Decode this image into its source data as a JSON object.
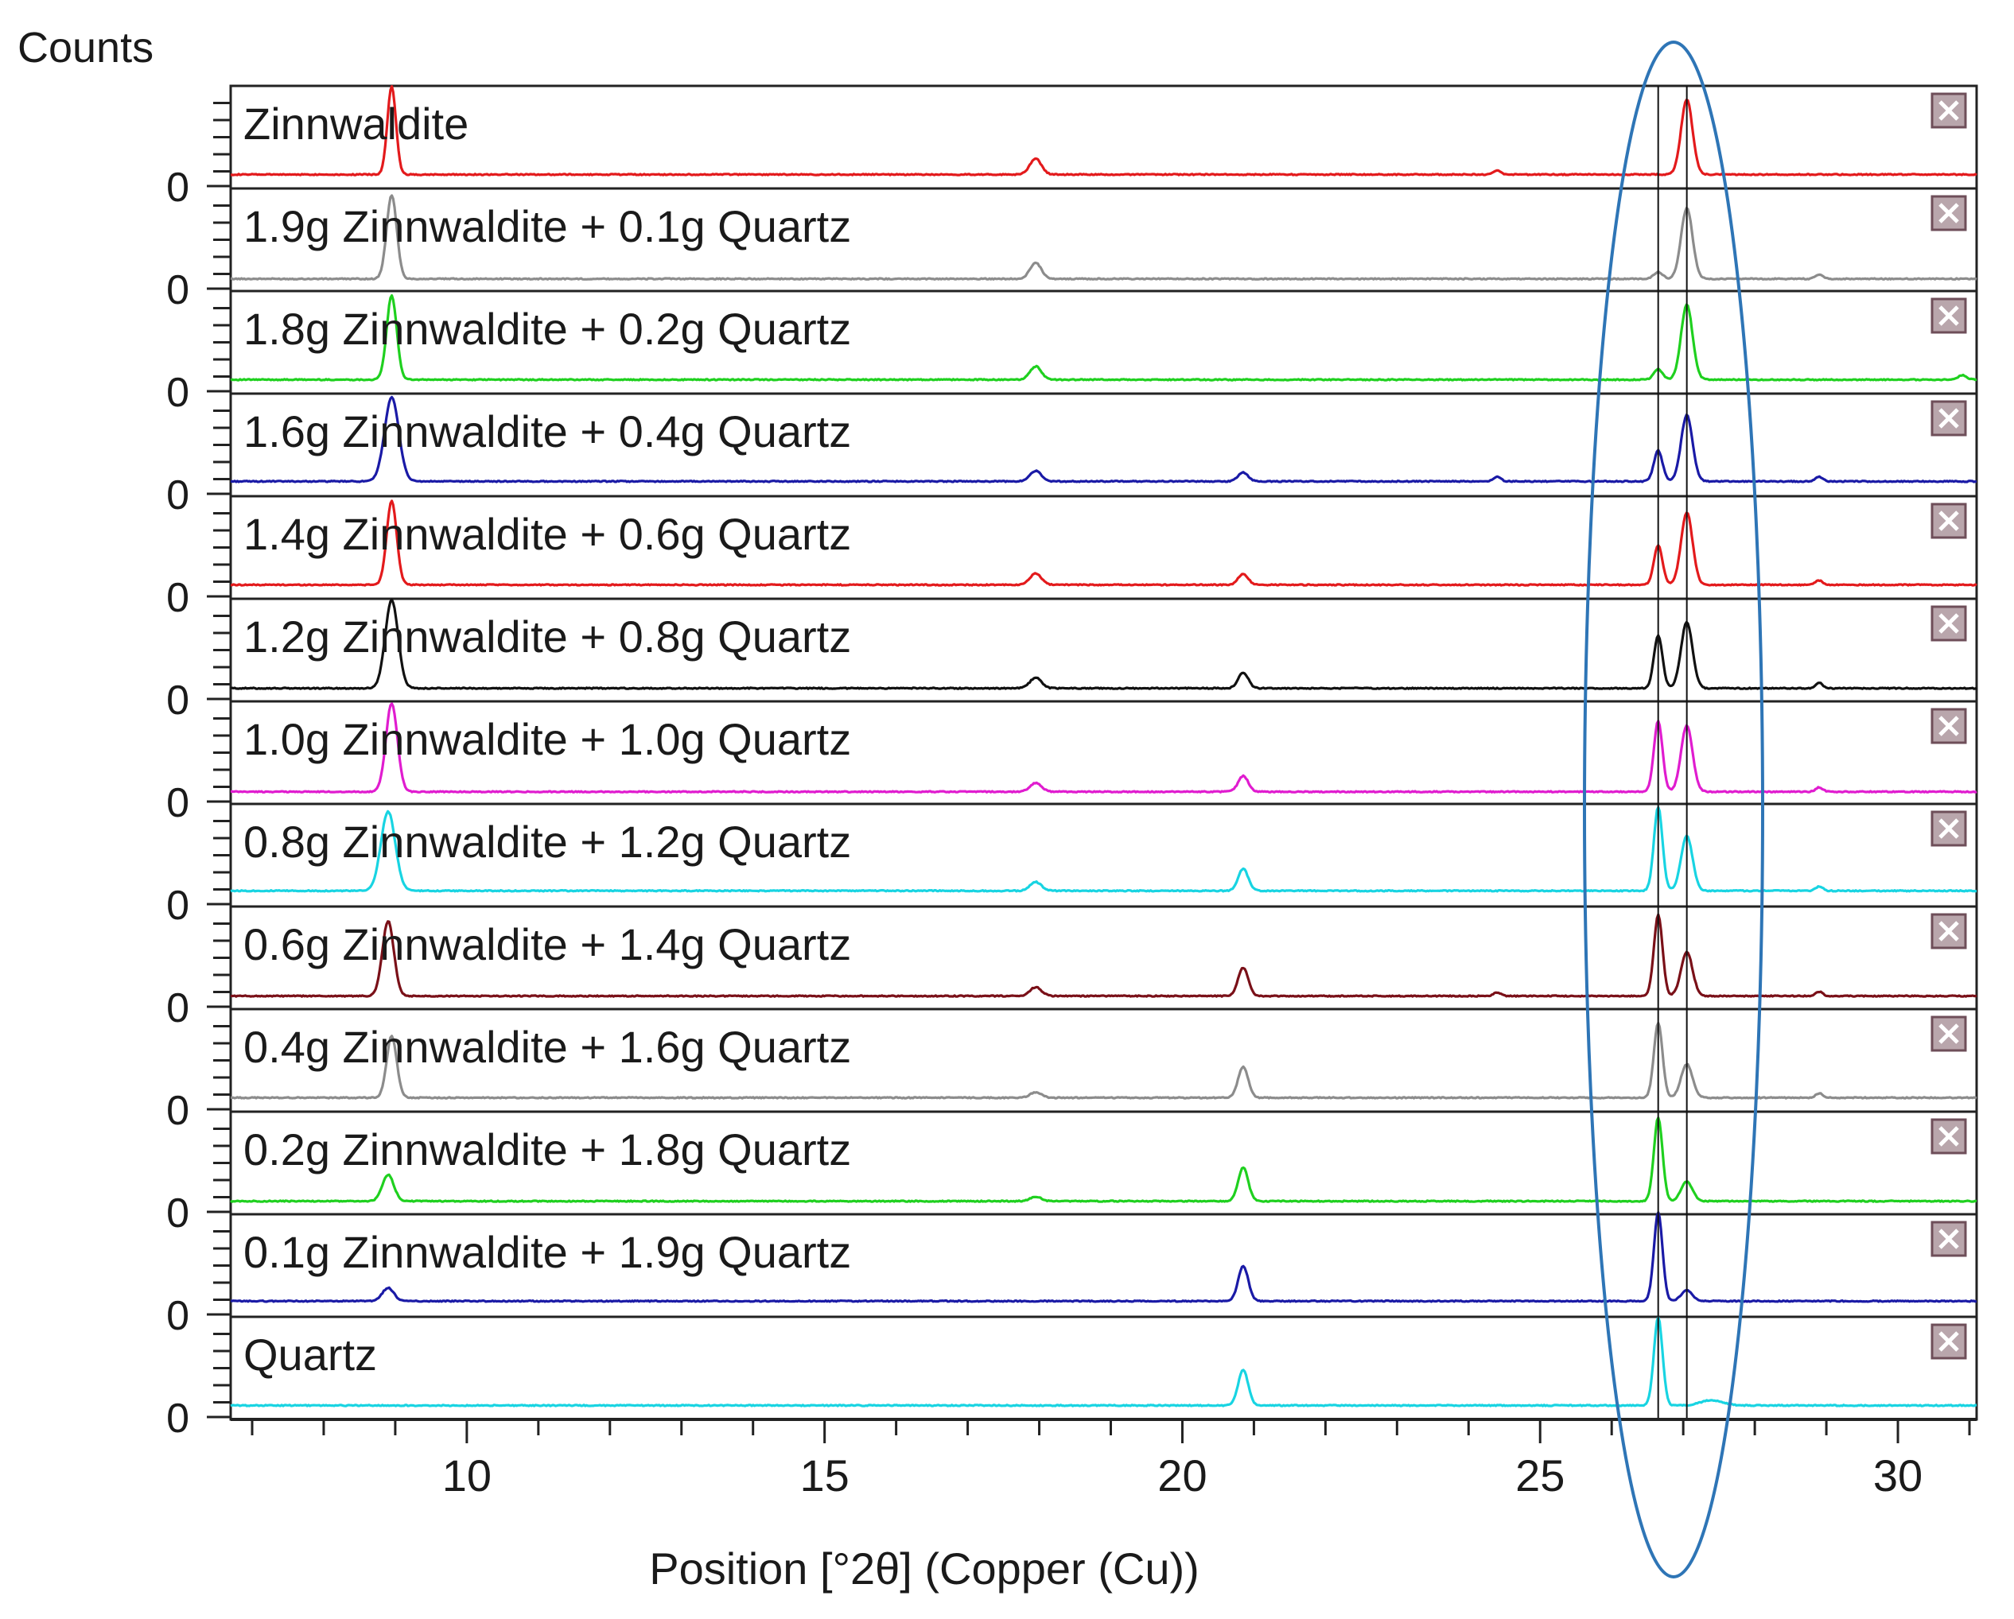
{
  "chart_data": {
    "type": "line",
    "title": "",
    "ylabel": "Counts",
    "xlabel": "Position [°2θ] (Copper (Cu))",
    "xlim": [
      6.7,
      31.1
    ],
    "x_ticks": [
      10,
      15,
      20,
      25,
      30
    ],
    "x_tick_labels": [
      "10",
      "15",
      "20",
      "25",
      "30"
    ],
    "y_tick_label": "0",
    "reference_lines_x": [
      26.65,
      27.05
    ],
    "highlight": {
      "shape": "ellipse",
      "x_center": 26.85,
      "note": "region of quartz (26.65) and zinnwaldite (27.05) peaks"
    },
    "close_icon": "close-box-icon",
    "series": [
      {
        "name": "Zinnwaldite",
        "color": "#e31a1c",
        "baseline": 0.08,
        "peaks": [
          [
            8.95,
            1.0,
            0.06
          ],
          [
            17.95,
            0.18,
            0.08
          ],
          [
            27.05,
            0.85,
            0.08
          ],
          [
            24.4,
            0.05,
            0.05
          ]
        ]
      },
      {
        "name": "1.9g Zinnwaldite + 0.1g Quartz",
        "color": "#8c8c8c",
        "baseline": 0.06,
        "peaks": [
          [
            8.95,
            0.95,
            0.07
          ],
          [
            17.95,
            0.18,
            0.08
          ],
          [
            26.65,
            0.08,
            0.06
          ],
          [
            27.05,
            0.8,
            0.08
          ],
          [
            28.9,
            0.05,
            0.05
          ]
        ]
      },
      {
        "name": "1.8g Zinnwaldite + 0.2g Quartz",
        "color": "#1fd01f",
        "baseline": 0.08,
        "peaks": [
          [
            8.95,
            0.95,
            0.07
          ],
          [
            17.95,
            0.15,
            0.08
          ],
          [
            26.65,
            0.12,
            0.06
          ],
          [
            27.05,
            0.85,
            0.08
          ],
          [
            30.9,
            0.05,
            0.06
          ]
        ]
      },
      {
        "name": "1.6g Zinnwaldite + 0.4g Quartz",
        "color": "#1a1aa6",
        "baseline": 0.09,
        "peaks": [
          [
            8.95,
            0.95,
            0.1
          ],
          [
            17.95,
            0.12,
            0.08
          ],
          [
            20.85,
            0.1,
            0.07
          ],
          [
            24.4,
            0.05,
            0.05
          ],
          [
            26.65,
            0.35,
            0.06
          ],
          [
            27.05,
            0.75,
            0.08
          ],
          [
            28.9,
            0.05,
            0.05
          ]
        ]
      },
      {
        "name": "1.4g Zinnwaldite + 0.6g Quartz",
        "color": "#e31a1c",
        "baseline": 0.08,
        "peaks": [
          [
            8.95,
            0.95,
            0.07
          ],
          [
            17.95,
            0.13,
            0.08
          ],
          [
            20.85,
            0.12,
            0.07
          ],
          [
            26.65,
            0.45,
            0.06
          ],
          [
            27.05,
            0.82,
            0.08
          ],
          [
            28.9,
            0.05,
            0.05
          ]
        ]
      },
      {
        "name": "1.2g Zinnwaldite + 0.8g Quartz",
        "color": "#111111",
        "baseline": 0.07,
        "peaks": [
          [
            8.95,
            1.0,
            0.09
          ],
          [
            17.95,
            0.12,
            0.08
          ],
          [
            20.85,
            0.18,
            0.07
          ],
          [
            26.65,
            0.6,
            0.06
          ],
          [
            27.05,
            0.75,
            0.08
          ],
          [
            28.9,
            0.06,
            0.05
          ]
        ]
      },
      {
        "name": "1.0g Zinnwaldite + 1.0g Quartz",
        "color": "#e01ccf",
        "baseline": 0.06,
        "peaks": [
          [
            8.95,
            1.0,
            0.08
          ],
          [
            17.95,
            0.1,
            0.08
          ],
          [
            20.85,
            0.18,
            0.07
          ],
          [
            26.65,
            0.8,
            0.06
          ],
          [
            27.05,
            0.75,
            0.08
          ],
          [
            28.9,
            0.05,
            0.05
          ]
        ]
      },
      {
        "name": "0.8g Zinnwaldite + 1.2g Quartz",
        "color": "#18d4e2",
        "baseline": 0.1,
        "peaks": [
          [
            8.9,
            0.9,
            0.1
          ],
          [
            17.95,
            0.1,
            0.08
          ],
          [
            20.85,
            0.25,
            0.07
          ],
          [
            26.65,
            0.95,
            0.06
          ],
          [
            27.05,
            0.62,
            0.08
          ],
          [
            28.9,
            0.05,
            0.05
          ]
        ]
      },
      {
        "name": "0.6g Zinnwaldite + 1.4g Quartz",
        "color": "#7a1018",
        "baseline": 0.07,
        "peaks": [
          [
            8.9,
            0.85,
            0.08
          ],
          [
            17.95,
            0.1,
            0.08
          ],
          [
            20.85,
            0.32,
            0.07
          ],
          [
            24.4,
            0.04,
            0.05
          ],
          [
            26.65,
            0.92,
            0.06
          ],
          [
            27.05,
            0.5,
            0.08
          ],
          [
            28.9,
            0.05,
            0.05
          ]
        ]
      },
      {
        "name": "0.4g Zinnwaldite + 1.6g Quartz",
        "color": "#8c8c8c",
        "baseline": 0.08,
        "peaks": [
          [
            8.95,
            0.7,
            0.07
          ],
          [
            17.95,
            0.06,
            0.08
          ],
          [
            20.85,
            0.35,
            0.07
          ],
          [
            26.65,
            0.85,
            0.06
          ],
          [
            27.05,
            0.38,
            0.08
          ],
          [
            28.9,
            0.05,
            0.05
          ]
        ]
      },
      {
        "name": "0.2g Zinnwaldite + 1.8g Quartz",
        "color": "#1fd01f",
        "baseline": 0.07,
        "peaks": [
          [
            8.9,
            0.3,
            0.08
          ],
          [
            17.95,
            0.05,
            0.08
          ],
          [
            20.85,
            0.38,
            0.07
          ],
          [
            26.65,
            0.95,
            0.06
          ],
          [
            27.05,
            0.22,
            0.08
          ]
        ]
      },
      {
        "name": "0.1g Zinnwaldite + 1.9g Quartz",
        "color": "#1a1aa6",
        "baseline": 0.1,
        "peaks": [
          [
            8.9,
            0.15,
            0.08
          ],
          [
            20.85,
            0.4,
            0.07
          ],
          [
            26.65,
            1.0,
            0.06
          ],
          [
            27.05,
            0.12,
            0.08
          ]
        ]
      },
      {
        "name": "Quartz",
        "color": "#18d4e2",
        "baseline": 0.08,
        "peaks": [
          [
            20.85,
            0.4,
            0.07
          ],
          [
            26.65,
            1.0,
            0.06
          ],
          [
            27.4,
            0.06,
            0.15
          ]
        ]
      }
    ]
  }
}
